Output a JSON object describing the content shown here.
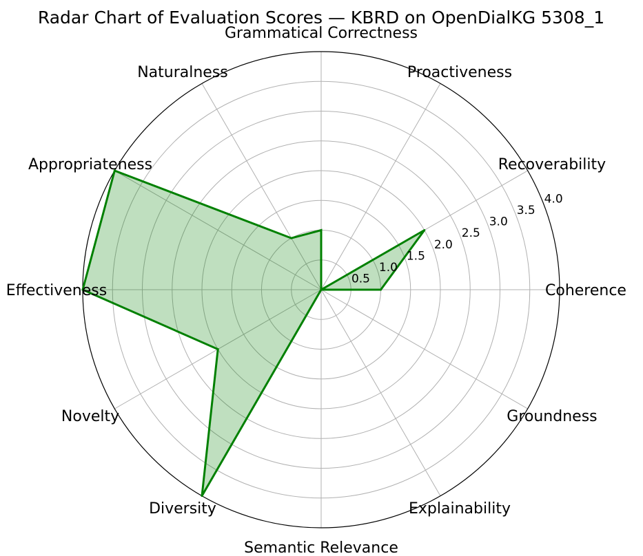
{
  "chart_data": {
    "type": "radar",
    "title": "Radar Chart of Evaluation Scores — KBRD on OpenDialKG 5308_1",
    "categories": [
      "Coherence",
      "Recoverability",
      "Proactiveness",
      "Grammatical Correctness",
      "Naturalness",
      "Appropriateness",
      "Effectiveness",
      "Novelty",
      "Diversity",
      "Semantic Relevance",
      "Explainability",
      "Groundness"
    ],
    "series": [
      {
        "name": "KBRD",
        "values": [
          1,
          2,
          0,
          1,
          1,
          4,
          4,
          2,
          4,
          0,
          0,
          0
        ],
        "color": "#008000",
        "fill_color": "#008000",
        "fill_opacity": 0.25
      }
    ],
    "r_ticks": [
      "0.5",
      "1.0",
      "1.5",
      "2.0",
      "2.5",
      "3.0",
      "3.5",
      "4.0"
    ],
    "r_tick_values": [
      0.5,
      1.0,
      1.5,
      2.0,
      2.5,
      3.0,
      3.5,
      4.0
    ],
    "rlim": [
      0,
      4
    ],
    "grid": true,
    "grid_color": "#b0b0b0",
    "outline_color": "#000000"
  }
}
